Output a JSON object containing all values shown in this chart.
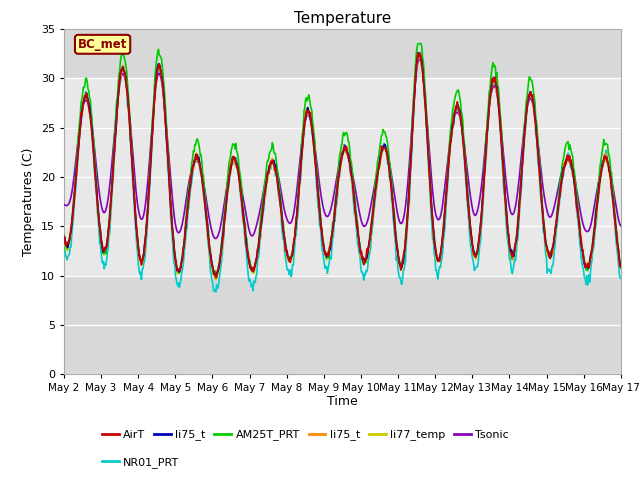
{
  "title": "Temperature",
  "ylabel": "Temperatures (C)",
  "xlabel": "Time",
  "annotation": "BC_met",
  "ylim": [
    0,
    35
  ],
  "yticks": [
    0,
    5,
    10,
    15,
    20,
    25,
    30,
    35
  ],
  "background_color": "#ffffff",
  "plot_bg_color": "#d8d8d8",
  "shaded_band_color": "#e8e8e8",
  "shaded_region": [
    10,
    30
  ],
  "series": {
    "AirT": {
      "color": "#cc0000",
      "lw": 1.2
    },
    "li75_t_b": {
      "color": "#0000bb",
      "lw": 1.2
    },
    "AM25T_PRT": {
      "color": "#00cc00",
      "lw": 1.2
    },
    "li75_t_o": {
      "color": "#ff8800",
      "lw": 1.2
    },
    "li77_temp": {
      "color": "#cccc00",
      "lw": 1.2
    },
    "Tsonic": {
      "color": "#8800bb",
      "lw": 1.2
    },
    "NR01_PRT": {
      "color": "#00cccc",
      "lw": 1.2
    }
  },
  "legend": [
    {
      "label": "AirT",
      "color": "#cc0000"
    },
    {
      "label": "li75_t",
      "color": "#0000bb"
    },
    {
      "label": "AM25T_PRT",
      "color": "#00cc00"
    },
    {
      "label": "li75_t",
      "color": "#ff8800"
    },
    {
      "label": "li77_temp",
      "color": "#cccc00"
    },
    {
      "label": "Tsonic",
      "color": "#8800bb"
    },
    {
      "label": "NR01_PRT",
      "color": "#00cccc"
    }
  ],
  "start_day": 2,
  "end_day": 17,
  "n_points": 720,
  "figsize": [
    6.4,
    4.8
  ],
  "dpi": 100
}
